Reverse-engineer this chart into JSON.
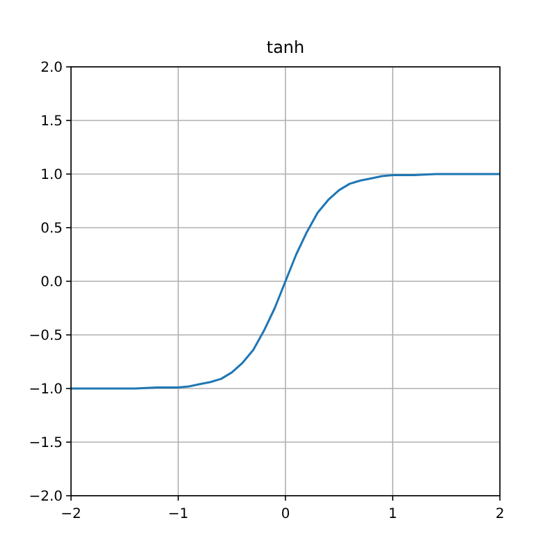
{
  "chart_data": {
    "type": "line",
    "title": "tanh",
    "x": [
      -2,
      -1.6,
      -1.4,
      -1.2,
      -1,
      -0.9,
      -0.8,
      -0.7,
      -0.6,
      -0.5,
      -0.4,
      -0.3,
      -0.2,
      -0.1,
      0,
      0.1,
      0.2,
      0.3,
      0.4,
      0.5,
      0.6,
      0.7,
      0.8,
      0.9,
      1,
      1.2,
      1.4,
      1.6,
      2
    ],
    "series": [
      {
        "color": "#1f77b4",
        "values": [
          -1,
          -1,
          -1,
          -0.99,
          -0.99,
          -0.98,
          -0.96,
          -0.94,
          -0.91,
          -0.85,
          -0.76,
          -0.64,
          -0.46,
          -0.25,
          0,
          0.25,
          0.46,
          0.64,
          0.76,
          0.85,
          0.91,
          0.94,
          0.96,
          0.98,
          0.99,
          0.99,
          1,
          1,
          1
        ]
      }
    ],
    "xlim": [
      -2,
      2
    ],
    "xticks": [
      {
        "value": -2,
        "label": "−2"
      },
      {
        "value": -1,
        "label": "−1"
      },
      0,
      1,
      2
    ],
    "ylim": [
      -2,
      2
    ],
    "yticks": [
      {
        "value": -2,
        "label": "−2.0"
      },
      {
        "value": -1.5,
        "label": "−1.5"
      },
      {
        "value": -1,
        "label": "−1.0"
      },
      {
        "value": -0.5,
        "label": "−0.5"
      },
      {
        "value": 0,
        "label": "0.0"
      },
      {
        "value": 0.5,
        "label": "0.5"
      },
      {
        "value": 1,
        "label": "1.0"
      },
      {
        "value": 1.5,
        "label": "1.5"
      },
      {
        "value": 2,
        "label": "2.0"
      }
    ],
    "grid": true,
    "line_style": "solid"
  }
}
